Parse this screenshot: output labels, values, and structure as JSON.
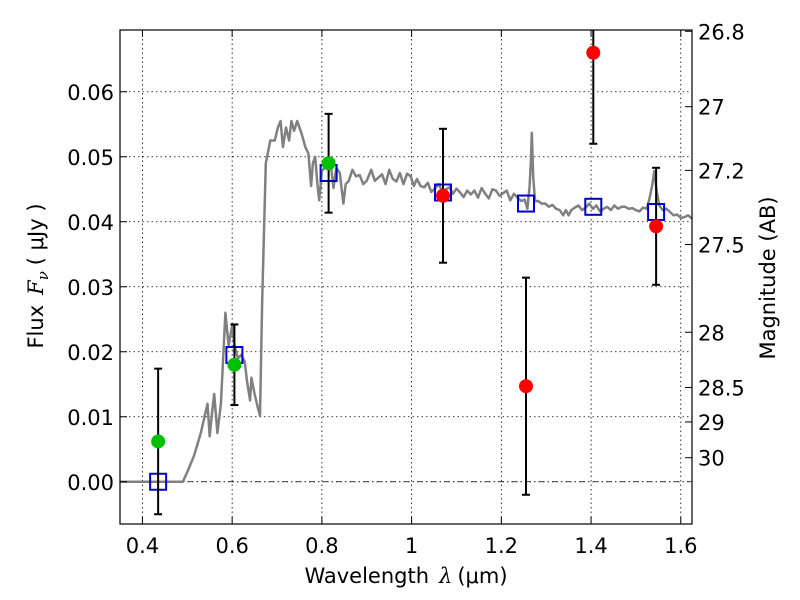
{
  "chart_data": {
    "type": "scatter",
    "xlabel": {
      "prefix": "Wavelength",
      "symbol": "λ",
      "unit": "(μm)"
    },
    "ylabel": {
      "prefix": "Flux",
      "symbol": "F",
      "subscript": "ν",
      "unit": "( μJy )"
    },
    "y2label": "Magnitude (AB)",
    "xlim": [
      0.35,
      1.625
    ],
    "ylim": [
      -0.0065,
      0.0695
    ],
    "grid": true,
    "xticks": [
      {
        "value": 0.4,
        "label": "0.4"
      },
      {
        "value": 0.6,
        "label": "0.6"
      },
      {
        "value": 0.8,
        "label": "0.8"
      },
      {
        "value": 1.0,
        "label": "1"
      },
      {
        "value": 1.2,
        "label": "1.2"
      },
      {
        "value": 1.4,
        "label": "1.4"
      },
      {
        "value": 1.6,
        "label": "1.6"
      }
    ],
    "yticks": [
      {
        "value": 0.0,
        "label": "0.00"
      },
      {
        "value": 0.01,
        "label": "0.01"
      },
      {
        "value": 0.02,
        "label": "0.02"
      },
      {
        "value": 0.03,
        "label": "0.03"
      },
      {
        "value": 0.04,
        "label": "0.04"
      },
      {
        "value": 0.05,
        "label": "0.05"
      },
      {
        "value": 0.06,
        "label": "0.06"
      }
    ],
    "y2ticks": [
      {
        "flux": 0.0693,
        "label": "26.8"
      },
      {
        "flux": 0.0577,
        "label": "27"
      },
      {
        "flux": 0.0479,
        "label": "27.2"
      },
      {
        "flux": 0.0365,
        "label": "27.5"
      },
      {
        "flux": 0.023,
        "label": "28"
      },
      {
        "flux": 0.0145,
        "label": "28.5"
      },
      {
        "flux": 0.0092,
        "label": "29"
      },
      {
        "flux": 0.0037,
        "label": "30"
      }
    ],
    "zero_line": 0.0,
    "model_spectrum": {
      "color": "#808080",
      "points": [
        [
          0.35,
          0
        ],
        [
          0.45,
          0
        ],
        [
          0.49,
          0
        ],
        [
          0.5,
          0.0015
        ],
        [
          0.515,
          0.004
        ],
        [
          0.53,
          0.0075
        ],
        [
          0.545,
          0.012
        ],
        [
          0.55,
          0.007
        ],
        [
          0.555,
          0.0105
        ],
        [
          0.56,
          0.0135
        ],
        [
          0.567,
          0.0075
        ],
        [
          0.575,
          0.012
        ],
        [
          0.585,
          0.026
        ],
        [
          0.592,
          0.021
        ],
        [
          0.6,
          0.024
        ],
        [
          0.605,
          0.021
        ],
        [
          0.613,
          0.019
        ],
        [
          0.62,
          0.0195
        ],
        [
          0.628,
          0.0185
        ],
        [
          0.633,
          0.0155
        ],
        [
          0.64,
          0.0125
        ],
        [
          0.643,
          0.016
        ],
        [
          0.65,
          0.0135
        ],
        [
          0.657,
          0.0115
        ],
        [
          0.662,
          0.0102
        ],
        [
          0.667,
          0.028
        ],
        [
          0.675,
          0.049
        ],
        [
          0.685,
          0.0525
        ],
        [
          0.695,
          0.0525
        ],
        [
          0.702,
          0.0545
        ],
        [
          0.708,
          0.0555
        ],
        [
          0.713,
          0.0515
        ],
        [
          0.72,
          0.0545
        ],
        [
          0.727,
          0.0525
        ],
        [
          0.732,
          0.0555
        ],
        [
          0.738,
          0.054
        ],
        [
          0.745,
          0.0555
        ],
        [
          0.755,
          0.0535
        ],
        [
          0.763,
          0.0515
        ],
        [
          0.77,
          0.0505
        ],
        [
          0.776,
          0.0455
        ],
        [
          0.78,
          0.049
        ],
        [
          0.785,
          0.05
        ],
        [
          0.79,
          0.0458
        ],
        [
          0.794,
          0.0433
        ],
        [
          0.8,
          0.0478
        ],
        [
          0.808,
          0.0485
        ],
        [
          0.818,
          0.0498
        ],
        [
          0.826,
          0.0452
        ],
        [
          0.832,
          0.0483
        ],
        [
          0.84,
          0.0475
        ],
        [
          0.848,
          0.0428
        ],
        [
          0.853,
          0.0458
        ],
        [
          0.86,
          0.0463
        ],
        [
          0.868,
          0.048
        ],
        [
          0.876,
          0.047
        ],
        [
          0.884,
          0.0472
        ],
        [
          0.892,
          0.0458
        ],
        [
          0.9,
          0.0463
        ],
        [
          0.91,
          0.048
        ],
        [
          0.918,
          0.0463
        ],
        [
          0.926,
          0.0468
        ],
        [
          0.934,
          0.0473
        ],
        [
          0.942,
          0.0458
        ],
        [
          0.95,
          0.048
        ],
        [
          0.958,
          0.0466
        ],
        [
          0.966,
          0.0462
        ],
        [
          0.974,
          0.0475
        ],
        [
          0.982,
          0.0458
        ],
        [
          0.99,
          0.0474
        ],
        [
          0.998,
          0.047
        ],
        [
          1.005,
          0.0455
        ],
        [
          1.012,
          0.0466
        ],
        [
          1.02,
          0.0455
        ],
        [
          1.028,
          0.0453
        ],
        [
          1.036,
          0.046
        ],
        [
          1.044,
          0.0446
        ],
        [
          1.052,
          0.0451
        ],
        [
          1.06,
          0.0458
        ],
        [
          1.068,
          0.0448
        ],
        [
          1.076,
          0.045
        ],
        [
          1.084,
          0.0453
        ],
        [
          1.092,
          0.0443
        ],
        [
          1.1,
          0.0451
        ],
        [
          1.108,
          0.0445
        ],
        [
          1.116,
          0.0438
        ],
        [
          1.124,
          0.0448
        ],
        [
          1.132,
          0.0442
        ],
        [
          1.14,
          0.0448
        ],
        [
          1.148,
          0.0437
        ],
        [
          1.156,
          0.0452
        ],
        [
          1.164,
          0.0443
        ],
        [
          1.172,
          0.0436
        ],
        [
          1.18,
          0.045
        ],
        [
          1.188,
          0.0448
        ],
        [
          1.196,
          0.044
        ],
        [
          1.204,
          0.0444
        ],
        [
          1.212,
          0.0448
        ],
        [
          1.22,
          0.0433
        ],
        [
          1.228,
          0.0443
        ],
        [
          1.236,
          0.0437
        ],
        [
          1.244,
          0.0432
        ],
        [
          1.252,
          0.0434
        ],
        [
          1.258,
          0.042
        ],
        [
          1.263,
          0.0455
        ],
        [
          1.266,
          0.0493
        ],
        [
          1.268,
          0.0537
        ],
        [
          1.271,
          0.047
        ],
        [
          1.275,
          0.0432
        ],
        [
          1.282,
          0.0432
        ],
        [
          1.29,
          0.0428
        ],
        [
          1.298,
          0.0428
        ],
        [
          1.306,
          0.0423
        ],
        [
          1.314,
          0.0426
        ],
        [
          1.322,
          0.042
        ],
        [
          1.33,
          0.0418
        ],
        [
          1.338,
          0.041
        ],
        [
          1.344,
          0.0418
        ],
        [
          1.35,
          0.041
        ],
        [
          1.356,
          0.0418
        ],
        [
          1.364,
          0.0422
        ],
        [
          1.372,
          0.0425
        ],
        [
          1.38,
          0.0418
        ],
        [
          1.388,
          0.0422
        ],
        [
          1.396,
          0.0428
        ],
        [
          1.404,
          0.042
        ],
        [
          1.412,
          0.0425
        ],
        [
          1.42,
          0.0416
        ],
        [
          1.428,
          0.042
        ],
        [
          1.436,
          0.0423
        ],
        [
          1.444,
          0.0418
        ],
        [
          1.452,
          0.0425
        ],
        [
          1.46,
          0.042
        ],
        [
          1.468,
          0.0423
        ],
        [
          1.476,
          0.0423
        ],
        [
          1.484,
          0.042
        ],
        [
          1.492,
          0.0421
        ],
        [
          1.5,
          0.0418
        ],
        [
          1.508,
          0.0416
        ],
        [
          1.516,
          0.0422
        ],
        [
          1.524,
          0.042
        ],
        [
          1.53,
          0.0435
        ],
        [
          1.536,
          0.0455
        ],
        [
          1.541,
          0.0478
        ],
        [
          1.546,
          0.0448
        ],
        [
          1.552,
          0.0425
        ],
        [
          1.56,
          0.0418
        ],
        [
          1.568,
          0.042
        ],
        [
          1.576,
          0.0415
        ],
        [
          1.584,
          0.041
        ],
        [
          1.592,
          0.0411
        ],
        [
          1.6,
          0.0406
        ],
        [
          1.608,
          0.0407
        ],
        [
          1.616,
          0.041
        ],
        [
          1.625,
          0.0405
        ]
      ]
    },
    "model_photometry": {
      "marker": "open-square",
      "color": "#0000cc",
      "points": [
        [
          0.435,
          0.0
        ],
        [
          0.605,
          0.0195
        ],
        [
          0.815,
          0.0475
        ],
        [
          1.07,
          0.0445
        ],
        [
          1.255,
          0.0428
        ],
        [
          1.405,
          0.0423
        ],
        [
          1.545,
          0.0415
        ]
      ]
    },
    "observed": [
      {
        "x": 0.435,
        "y": 0.0062,
        "err_low": 0.0112,
        "err_high": 0.0112,
        "color": "#00c000"
      },
      {
        "x": 0.605,
        "y": 0.018,
        "err_low": 0.0062,
        "err_high": 0.0062,
        "color": "#00c000"
      },
      {
        "x": 0.815,
        "y": 0.049,
        "err_low": 0.0076,
        "err_high": 0.0076,
        "color": "#00c000"
      },
      {
        "x": 1.07,
        "y": 0.044,
        "err_low": 0.0103,
        "err_high": 0.0103,
        "color": "#ff0000"
      },
      {
        "x": 1.255,
        "y": 0.0147,
        "err_low": 0.0167,
        "err_high": 0.0167,
        "color": "#ff0000"
      },
      {
        "x": 1.405,
        "y": 0.066,
        "err_low": 0.014,
        "err_high": 0.014,
        "color": "#ff0000"
      },
      {
        "x": 1.545,
        "y": 0.0393,
        "err_low": 0.009,
        "err_high": 0.009,
        "color": "#ff0000"
      }
    ]
  }
}
